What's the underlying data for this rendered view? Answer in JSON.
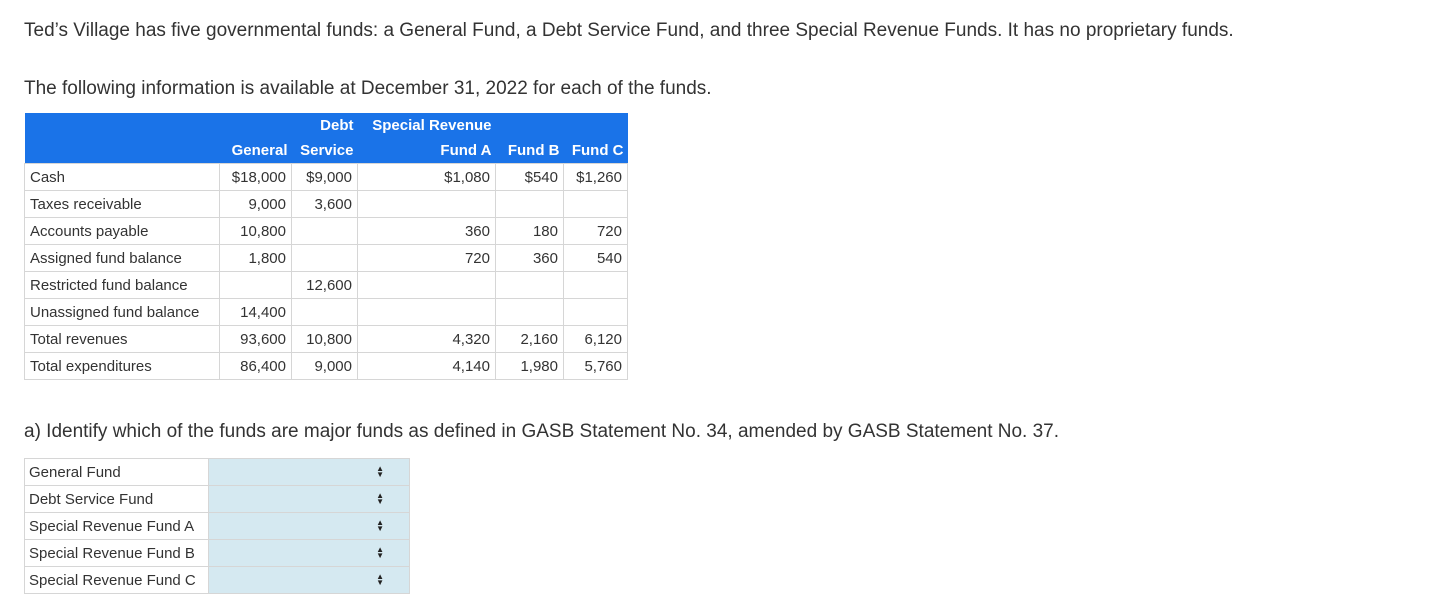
{
  "intro": "Ted’s Village has five governmental funds: a General Fund, a Debt Service Fund, and three Special Revenue Funds. It has no proprietary funds.",
  "intro2": "The following information is available at December 31, 2022 for each of the funds.",
  "fund_table": {
    "header_top": [
      "",
      "",
      "Debt",
      "Special Revenue",
      "",
      ""
    ],
    "header_bottom": [
      "",
      "General",
      "Service",
      "Fund A",
      "Fund B",
      "Fund C"
    ],
    "rows": [
      {
        "label": "Cash",
        "values": [
          "$18,000",
          "$9,000",
          "$1,080",
          "$540",
          "$1,260"
        ]
      },
      {
        "label": "Taxes receivable",
        "values": [
          "9,000",
          "3,600",
          "",
          "",
          ""
        ]
      },
      {
        "label": "Accounts payable",
        "values": [
          "10,800",
          "",
          "360",
          "180",
          "720"
        ]
      },
      {
        "label": "Assigned fund balance",
        "values": [
          "1,800",
          "",
          "720",
          "360",
          "540"
        ]
      },
      {
        "label": "Restricted fund balance",
        "values": [
          "",
          "12,600",
          "",
          "",
          ""
        ]
      },
      {
        "label": "Unassigned fund balance",
        "values": [
          "14,400",
          "",
          "",
          "",
          ""
        ]
      },
      {
        "label": "Total revenues",
        "values": [
          "93,600",
          "10,800",
          "4,320",
          "2,160",
          "6,120"
        ]
      },
      {
        "label": "Total expenditures",
        "values": [
          "86,400",
          "9,000",
          "4,140",
          "1,980",
          "5,760"
        ]
      }
    ]
  },
  "question": "a) Identify which of the funds are major funds as defined in GASB Statement No. 34, amended by GASB Statement No. 37.",
  "answers": [
    {
      "label": "General Fund",
      "value": ""
    },
    {
      "label": "Debt Service Fund",
      "value": ""
    },
    {
      "label": "Special Revenue Fund A",
      "value": ""
    },
    {
      "label": "Special Revenue Fund B",
      "value": ""
    },
    {
      "label": "Special Revenue Fund C",
      "value": ""
    }
  ],
  "icons": {
    "select": "up-down-arrows-icon"
  },
  "colors": {
    "header_bg": "#1a73e8",
    "select_bg": "#d5e9f1"
  }
}
